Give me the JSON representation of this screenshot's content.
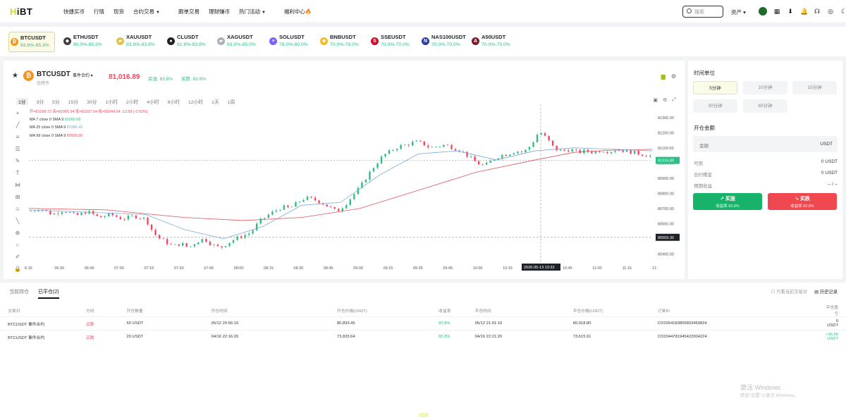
{
  "app": {
    "logo_prefix": "H",
    "logo": "HiBT"
  },
  "nav": [
    {
      "label": "快捷买币",
      "dropdown": false
    },
    {
      "label": "行情",
      "dropdown": false
    },
    {
      "label": "现货",
      "dropdown": false
    },
    {
      "label": "合约交易",
      "dropdown": true
    },
    {
      "label": "跟单交易",
      "dropdown": false
    },
    {
      "label": "理财赚币",
      "dropdown": false
    },
    {
      "label": "热门活动",
      "dropdown": true
    },
    {
      "label": "福利中心",
      "dropdown": false
    }
  ],
  "search": {
    "placeholder": "搜索"
  },
  "assets_label": "资产",
  "tickers": [
    {
      "name": "BTCUSDT",
      "range": "83.8%-85.3%",
      "icon": "bitcoin-icon",
      "color": "#f7931a",
      "glyph": "₿",
      "selected": true
    },
    {
      "name": "ETHUSDT",
      "range": "80.0%-85.3%",
      "icon": "ethereum-icon",
      "color": "#3c3c3d",
      "glyph": "◆",
      "selected": false
    },
    {
      "name": "XAUUSDT",
      "range": "83.8%-83.8%",
      "icon": "gold-icon",
      "color": "#e3c04a",
      "glyph": "▰",
      "selected": false
    },
    {
      "name": "CLUSDT",
      "range": "82.8%-83.8%",
      "icon": "oil-drop-icon",
      "color": "#222222",
      "glyph": "●",
      "selected": false
    },
    {
      "name": "XAGUSDT",
      "range": "83.0%-85.0%",
      "icon": "silver-icon",
      "color": "#aab1b8",
      "glyph": "▰",
      "selected": false
    },
    {
      "name": "SOLUSDT",
      "range": "78.0%-80.0%",
      "icon": "solana-icon",
      "color": "#7b61ff",
      "glyph": "≡",
      "selected": false
    },
    {
      "name": "BNBUSDT",
      "range": "70.0%-78.0%",
      "icon": "bnb-icon",
      "color": "#f3ba2f",
      "glyph": "◆",
      "selected": false
    },
    {
      "name": "SSEUSDT",
      "range": "70.0%-70.0%",
      "icon": "sse-icon",
      "color": "#c8102e",
      "glyph": "S",
      "selected": false
    },
    {
      "name": "NAS100USDT",
      "range": "70.0%-70.0%",
      "icon": "nasdaq-icon",
      "color": "#2c3e9c",
      "glyph": "N",
      "selected": false
    },
    {
      "name": "A50USDT",
      "range": "70.0%-70.0%",
      "icon": "a50-icon",
      "color": "#7d1d24",
      "glyph": "A",
      "selected": false
    }
  ],
  "pair": {
    "name": "BTCUSDT",
    "type": "事件合约",
    "cn": "比特币",
    "price": "81,016.89",
    "buy_up": "买涨: 83.8%",
    "buy_down": "买跌: 83.8%"
  },
  "timeframes": [
    "1分",
    "3分",
    "5分",
    "15分",
    "30分",
    "1小时",
    "2小时",
    "4小时",
    "6小时",
    "12小时",
    "1天",
    "1周"
  ],
  "timeframe_selected": "1分",
  "indicators": {
    "ohlc": "开=81058.72  高=81065.94  低=81037.54  收=81044.54  -13.58 (-0.02%)",
    "ma7": "MA 7 close 0 SMA 9",
    "ma7_val": "81090.68",
    "ma25": "MA 25 close 0 SMA 9",
    "ma25_val": "81086.45",
    "ma99": "MA 99 close 0 SMA 9",
    "ma99_val": "80999.96"
  },
  "colors": {
    "up": "#2ebd85",
    "down": "#f6465d",
    "ma7": "#2a8a3e",
    "ma25": "#7aa8d8",
    "ma99": "#e0555a"
  },
  "chart_data": {
    "type": "candlestick",
    "ylim": [
      80350,
      81350
    ],
    "y_ticks": [
      "81300.00",
      "81200.00",
      "81100.00",
      "81000.00",
      "80900.00",
      "80800.00",
      "80700.00",
      "80600.00",
      "80500.00",
      "80400.00"
    ],
    "x_ticks": [
      "6:15",
      "06:30",
      "06:45",
      "07:00",
      "07:15",
      "07:30",
      "07:45",
      "08:00",
      "08:15",
      "08:30",
      "08:45",
      "09:00",
      "09:15",
      "09:30",
      "09:45",
      "10:00",
      "10:15",
      "10:30",
      "10:45",
      "11:00",
      "11:15",
      "11:"
    ],
    "crosshair_time": "2026-05-13   10:33",
    "last_price_label": "81016.89",
    "crosshair_price_label": "80509.30",
    "close_path": [
      [
        0,
        80680
      ],
      [
        6,
        80700
      ],
      [
        12,
        80660
      ],
      [
        18,
        80690
      ],
      [
        24,
        80650
      ],
      [
        30,
        80680
      ],
      [
        36,
        80640
      ],
      [
        42,
        80660
      ],
      [
        48,
        80630
      ],
      [
        54,
        80650
      ],
      [
        60,
        80630
      ],
      [
        63,
        80560
      ],
      [
        66,
        80510
      ],
      [
        70,
        80480
      ],
      [
        74,
        80450
      ],
      [
        78,
        80470
      ],
      [
        82,
        80440
      ],
      [
        86,
        80480
      ],
      [
        90,
        80500
      ],
      [
        94,
        80460
      ],
      [
        98,
        80440
      ],
      [
        102,
        80470
      ],
      [
        106,
        80500
      ],
      [
        110,
        80520
      ],
      [
        114,
        80540
      ],
      [
        118,
        80610
      ],
      [
        122,
        80650
      ],
      [
        126,
        80680
      ],
      [
        130,
        80710
      ],
      [
        134,
        80700
      ],
      [
        138,
        80740
      ],
      [
        142,
        80770
      ],
      [
        146,
        80760
      ],
      [
        150,
        80740
      ],
      [
        154,
        80710
      ],
      [
        158,
        80680
      ],
      [
        162,
        80720
      ],
      [
        166,
        80780
      ],
      [
        170,
        80840
      ],
      [
        174,
        80920
      ],
      [
        178,
        80990
      ],
      [
        182,
        81050
      ],
      [
        186,
        81080
      ],
      [
        190,
        81110
      ],
      [
        194,
        81120
      ],
      [
        198,
        81140
      ],
      [
        202,
        81130
      ],
      [
        206,
        81100
      ],
      [
        210,
        81110
      ],
      [
        214,
        81120
      ],
      [
        218,
        81100
      ],
      [
        222,
        81080
      ],
      [
        226,
        81040
      ],
      [
        230,
        81000
      ],
      [
        234,
        80980
      ],
      [
        238,
        81020
      ],
      [
        242,
        81050
      ],
      [
        246,
        81060
      ],
      [
        250,
        81080
      ],
      [
        254,
        81070
      ],
      [
        258,
        81120
      ],
      [
        262,
        81210
      ],
      [
        266,
        81160
      ],
      [
        270,
        81090
      ],
      [
        274,
        81080
      ],
      [
        278,
        81090
      ],
      [
        282,
        81070
      ],
      [
        286,
        81080
      ],
      [
        290,
        81070
      ],
      [
        294,
        81085
      ],
      [
        298,
        81075
      ],
      [
        302,
        81090
      ],
      [
        306,
        81080
      ],
      [
        310,
        81070
      ],
      [
        314,
        81060
      ],
      [
        318,
        81050
      ],
      [
        320,
        81044
      ]
    ],
    "ma7_path": [
      [
        0,
        80680
      ],
      [
        60,
        80650
      ],
      [
        70,
        80530
      ],
      [
        90,
        80480
      ],
      [
        110,
        80510
      ],
      [
        130,
        80690
      ],
      [
        150,
        80740
      ],
      [
        170,
        80820
      ],
      [
        190,
        81080
      ],
      [
        210,
        81110
      ],
      [
        230,
        81020
      ],
      [
        250,
        81060
      ],
      [
        262,
        81130
      ],
      [
        275,
        81100
      ],
      [
        300,
        81080
      ],
      [
        320,
        81070
      ]
    ],
    "ma25_path": [
      [
        0,
        80690
      ],
      [
        60,
        80660
      ],
      [
        80,
        80560
      ],
      [
        100,
        80500
      ],
      [
        120,
        80580
      ],
      [
        140,
        80720
      ],
      [
        160,
        80740
      ],
      [
        180,
        80920
      ],
      [
        200,
        81060
      ],
      [
        220,
        81080
      ],
      [
        240,
        81020
      ],
      [
        260,
        81080
      ],
      [
        280,
        81100
      ],
      [
        300,
        81090
      ],
      [
        320,
        81080
      ]
    ],
    "ma99_path": [
      [
        0,
        80700
      ],
      [
        40,
        80690
      ],
      [
        80,
        80640
      ],
      [
        110,
        80620
      ],
      [
        140,
        80640
      ],
      [
        170,
        80700
      ],
      [
        200,
        80820
      ],
      [
        230,
        80940
      ],
      [
        260,
        81020
      ],
      [
        280,
        81070
      ],
      [
        300,
        81085
      ],
      [
        320,
        81090
      ]
    ]
  },
  "right_panel": {
    "time_unit_title": "时间单位",
    "units": [
      "5分钟",
      "10分钟",
      "15分钟",
      "30分钟",
      "60分钟"
    ],
    "unit_selected": "5分钟",
    "amount_title": "开仓金额",
    "amount_placeholder": "金额",
    "amount_currency": "USDT",
    "available_label": "可用",
    "available_value": "0 USDT",
    "margin_label": "合约赠金",
    "margin_value": "0 USDT",
    "estimate_label": "预期收益",
    "estimate_value": "-- / --",
    "buy_label": "买涨",
    "buy_sub": "收益率 83.8%",
    "sell_label": "买跌",
    "sell_sub": "收益率 83.8%"
  },
  "bottom": {
    "tabs": [
      "当前持仓",
      "已平仓(2)"
    ],
    "tab_selected": "已平仓(2)",
    "only_current": "只看当前交易对",
    "history": "历史记录",
    "columns": [
      "交易对",
      "方向",
      "开仓数量",
      "开仓时间",
      "开仓价格(USDT)",
      "收益率",
      "平仓时间",
      "平仓价格(USDT)",
      "订单ID",
      "平仓盈亏"
    ],
    "rows": [
      {
        "pair": "BTCUSDT 事件合约",
        "dir": "买跌",
        "qty": "50 USDT",
        "open_time": "05/12 20:56:10",
        "open_price": "80,893.45",
        "rate": "83.8%",
        "close_time": "05/12 21:01:10",
        "close_price": "80,918.80",
        "order_id": "CO2054183856803469824",
        "pnl": "0 USDT"
      },
      {
        "pair": "BTCUSDT 事件合约",
        "dir": "买跌",
        "qty": "20 USDT",
        "open_time": "04/16 22:16:20",
        "open_price": "73,833.64",
        "rate": "83.8%",
        "close_time": "04/16 22:21:20",
        "close_price": "73,615.91",
        "order_id": "CO2044781945422004224",
        "pnl": "+36.56 USDT"
      }
    ]
  },
  "watermark": {
    "line1": "激活 Windows",
    "line2": "转到\"设置\"以激活 Windows。"
  }
}
